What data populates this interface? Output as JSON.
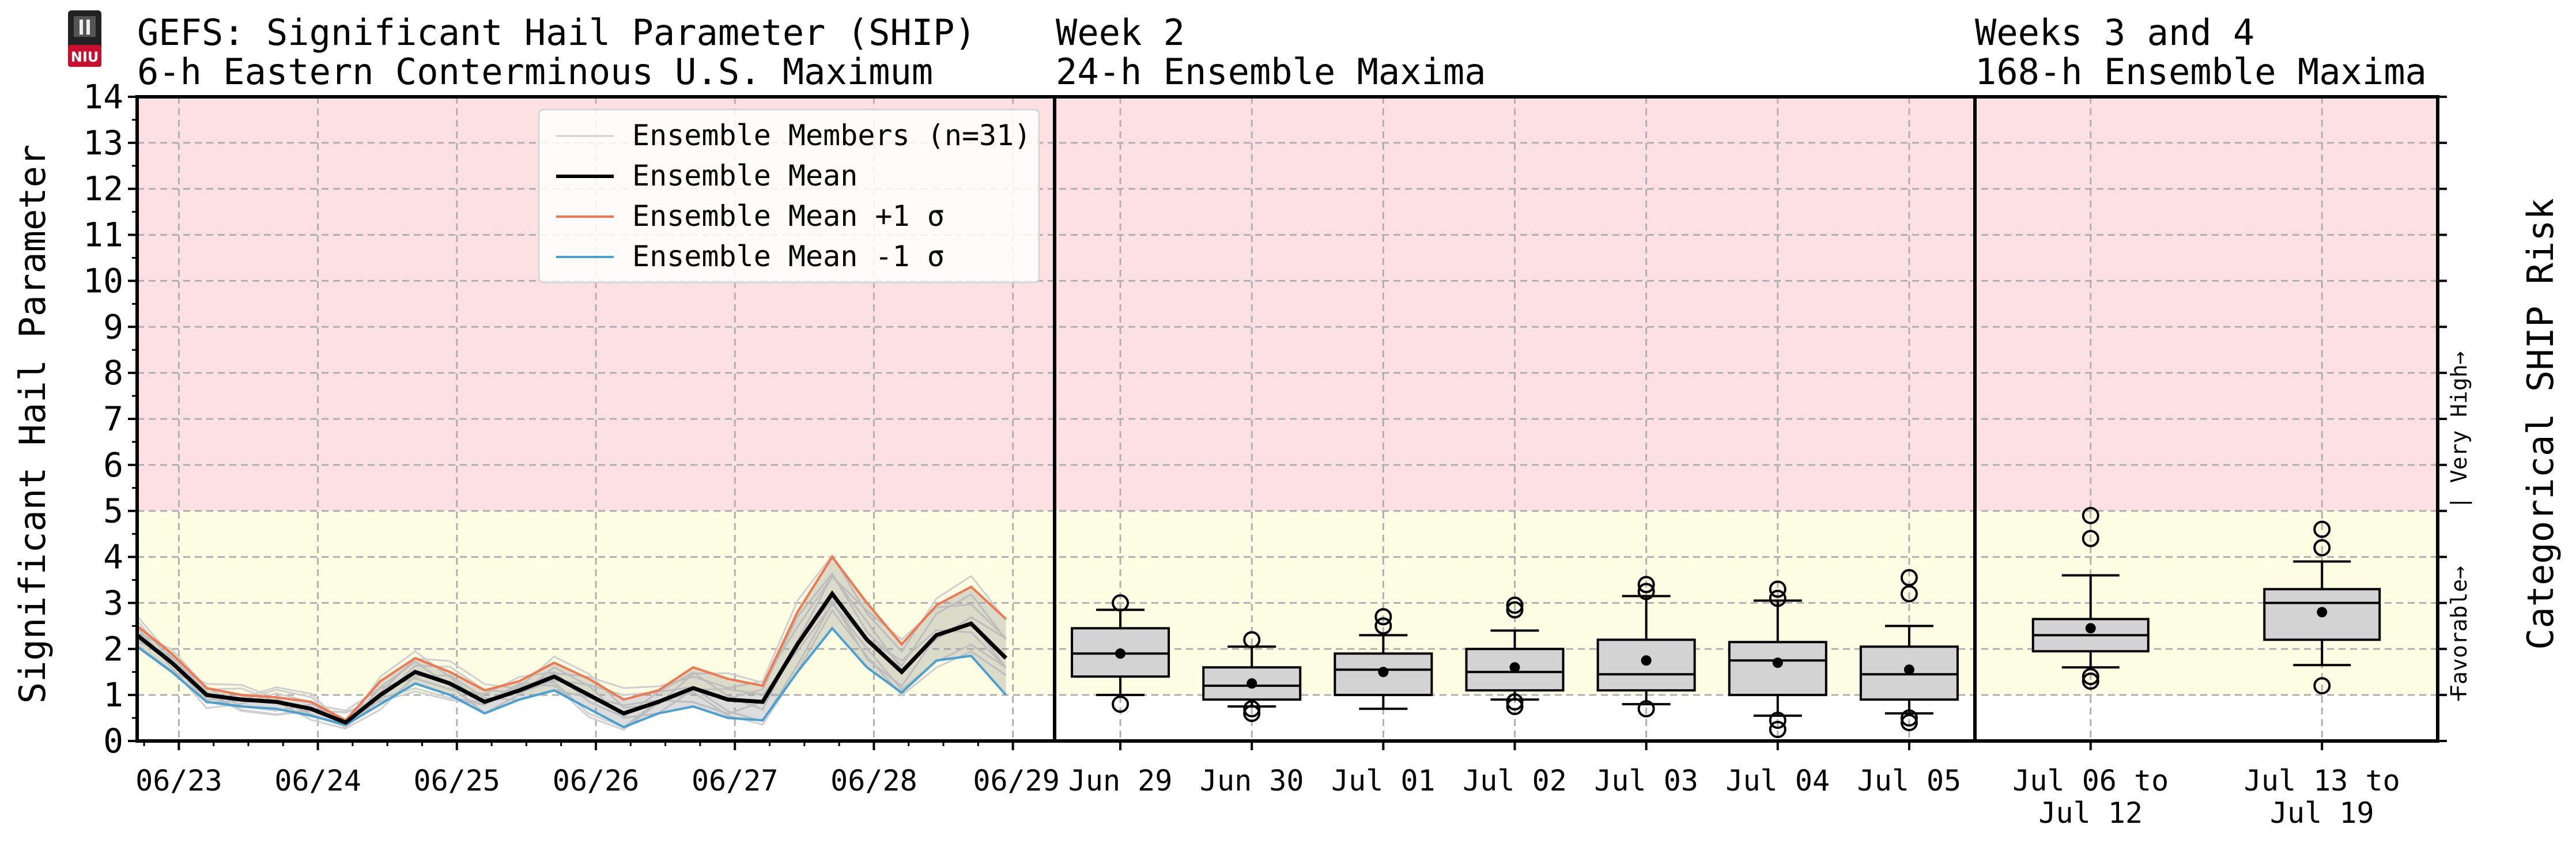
{
  "header": {
    "panel1_title_line1": "GEFS: Significant Hail Parameter (SHIP)",
    "panel1_title_line2": "6-h Eastern Conterminous U.S. Maximum",
    "panel2_title_line1": "Week 2",
    "panel2_title_line2": "24-h Ensemble Maxima",
    "panel3_title_line1": "Weeks 3 and 4",
    "panel3_title_line2": "168-h Ensemble Maxima"
  },
  "colors": {
    "high_risk_band": "#fde0e4",
    "favorable_band": "#fdfde3",
    "mean": "#000000",
    "plus_sigma": "#f07850",
    "minus_sigma": "#4aa0d0",
    "members": "#cfcfcf",
    "spread_fill": "#9b9b9b",
    "box_fill": "#d3d3d3",
    "logo": "#c8102e"
  },
  "chart_data": {
    "type": "line",
    "ylabel": "Significant Hail Parameter",
    "right_label": "Categorical SHIP Risk",
    "ylim": [
      0,
      14
    ],
    "yticks": [
      "0",
      "1",
      "2",
      "3",
      "4",
      "5",
      "6",
      "7",
      "8",
      "9",
      "10",
      "11",
      "12",
      "13",
      "14"
    ],
    "grid": true,
    "legend_position": "top-center",
    "risk_labels": {
      "favorable": "Favorable→",
      "very_high": "| Very High→"
    },
    "risk_thresholds": {
      "favorable_min": 1,
      "very_high_min": 5
    },
    "legend": [
      "Ensemble Members (n=31)",
      "Ensemble Mean",
      "Ensemble Mean +1 σ",
      "Ensemble Mean -1 σ"
    ],
    "panels": [
      {
        "type": "line",
        "x_ticks": [
          "06/23",
          "06/24",
          "06/25",
          "06/26",
          "06/27",
          "06/28",
          "06/29"
        ],
        "x_start_offset_days": -0.3,
        "step_days": 0.25,
        "series": [
          {
            "name": "Ensemble Mean",
            "values": [
              2.3,
              1.7,
              1.0,
              0.9,
              0.85,
              0.7,
              0.4,
              1.0,
              1.5,
              1.25,
              0.85,
              1.1,
              1.4,
              1.0,
              0.6,
              0.85,
              1.15,
              0.9,
              0.85,
              2.1,
              3.2,
              2.2,
              1.5,
              2.3,
              2.55,
              1.8
            ]
          },
          {
            "name": "Ensemble Mean +1 σ",
            "values": [
              2.5,
              1.9,
              1.15,
              1.0,
              0.95,
              0.85,
              0.45,
              1.3,
              1.8,
              1.5,
              1.1,
              1.3,
              1.7,
              1.35,
              0.9,
              1.1,
              1.6,
              1.35,
              1.2,
              2.8,
              4.0,
              3.0,
              2.1,
              2.95,
              3.35,
              2.65
            ]
          },
          {
            "name": "Ensemble Mean -1 σ",
            "values": [
              2.05,
              1.5,
              0.85,
              0.75,
              0.7,
              0.55,
              0.35,
              0.8,
              1.25,
              1.0,
              0.6,
              0.9,
              1.1,
              0.7,
              0.3,
              0.6,
              0.75,
              0.5,
              0.45,
              1.5,
              2.45,
              1.6,
              1.05,
              1.75,
              1.85,
              1.0
            ]
          }
        ]
      },
      {
        "type": "box",
        "categories": [
          "Jun 29",
          "Jun 30",
          "Jul 01",
          "Jul 02",
          "Jul 03",
          "Jul 04",
          "Jul 05"
        ],
        "boxes": [
          {
            "whisker_low": 1.0,
            "q1": 1.4,
            "median": 1.9,
            "q3": 2.45,
            "whisker_high": 2.85,
            "mean": 1.9,
            "outliers": [
              3.0,
              0.8
            ]
          },
          {
            "whisker_low": 0.75,
            "q1": 0.9,
            "median": 1.2,
            "q3": 1.6,
            "whisker_high": 2.05,
            "mean": 1.25,
            "outliers": [
              2.2,
              0.7,
              0.6
            ]
          },
          {
            "whisker_low": 0.7,
            "q1": 1.0,
            "median": 1.55,
            "q3": 1.9,
            "whisker_high": 2.3,
            "mean": 1.5,
            "outliers": [
              2.7,
              2.5
            ]
          },
          {
            "whisker_low": 0.9,
            "q1": 1.1,
            "median": 1.5,
            "q3": 2.0,
            "whisker_high": 2.4,
            "mean": 1.6,
            "outliers": [
              2.95,
              2.85,
              0.85,
              0.75
            ]
          },
          {
            "whisker_low": 0.8,
            "q1": 1.1,
            "median": 1.45,
            "q3": 2.2,
            "whisker_high": 3.15,
            "mean": 1.75,
            "outliers": [
              3.4,
              3.25,
              0.7
            ]
          },
          {
            "whisker_low": 0.55,
            "q1": 1.0,
            "median": 1.75,
            "q3": 2.15,
            "whisker_high": 3.05,
            "mean": 1.7,
            "outliers": [
              3.3,
              3.1,
              0.45,
              0.25
            ]
          },
          {
            "whisker_low": 0.6,
            "q1": 0.9,
            "median": 1.45,
            "q3": 2.05,
            "whisker_high": 2.5,
            "mean": 1.55,
            "outliers": [
              3.55,
              3.2,
              0.5,
              0.4
            ]
          }
        ]
      },
      {
        "type": "box",
        "categories": [
          [
            "Jul 06 to",
            "Jul 12"
          ],
          [
            "Jul 13 to",
            "Jul 19"
          ]
        ],
        "boxes": [
          {
            "whisker_low": 1.6,
            "q1": 1.95,
            "median": 2.3,
            "q3": 2.65,
            "whisker_high": 3.6,
            "mean": 2.45,
            "outliers": [
              4.9,
              4.4,
              1.4,
              1.3
            ]
          },
          {
            "whisker_low": 1.65,
            "q1": 2.2,
            "median": 3.0,
            "q3": 3.3,
            "whisker_high": 3.9,
            "mean": 2.8,
            "outliers": [
              4.6,
              4.2,
              1.2
            ]
          }
        ]
      }
    ]
  }
}
